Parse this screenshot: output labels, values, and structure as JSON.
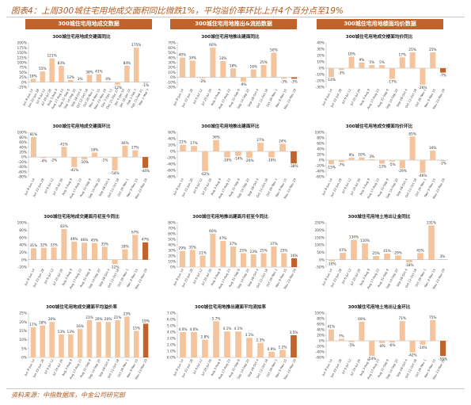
{
  "figure": {
    "title": "图表4：上周300城住宅用地成交面积同比微跌1%，平均溢价率环比上升4个百分点至19%",
    "source": "资料来源：中指数据库，中金公司研究部",
    "col_headers": [
      "300城住宅用地成交数据",
      "300城住宅用地推出&流拍数据",
      "300城住宅用地楼面均价数据"
    ]
  },
  "chart_data": [
    {
      "type": "bar",
      "title": "300城住宅用地成交建面同比",
      "ylim": [
        -25,
        200
      ],
      "yticks": [
        -25,
        0,
        25,
        50,
        75,
        100,
        125,
        150,
        175,
        200
      ],
      "tick_format": "pct",
      "categories": [
        "Jun 8-Jun 14",
        "Jun 22-Jun 28",
        "Jul 6-Jul 12",
        "Jul 20-Jul 26",
        "Aug 3-Aug 9",
        "Aug 17-Aug 23",
        "Aug 31-Sep 6",
        "Sep 14-Sep 20",
        "Sep 28-Oct 4",
        "Oct 12-Oct 18",
        "Oct 26-Nov 1",
        "Nov 9-Nov 15",
        "Nov 23-Nov 29",
        "Dec 7-Dec 13",
        "Dec 21-Dec 27",
        "Jan 4-Jan 10",
        "Jan 18-Jan 24",
        "Feb 1-Feb 7",
        "Feb 15-Feb 21",
        "Mar 1-Mar 7"
      ],
      "x_labels": [
        "Jun 8-Jun 14",
        "Jun 22-Jun 28",
        "Jul 6-Jul 12",
        "Jul 20-Jul 26",
        "Aug 3-Aug 9",
        "Aug 17-Aug 23",
        "Aug 31-Sep 6",
        "Sep 14-Sep 20",
        "Sep 28-Oct 4",
        "Oct 12-Oct 18",
        "Oct 26-Nov 1",
        "Nov 9-Nov 15",
        "Nov 23-Nov 29",
        "Dec 7-Dec 13",
        "Dec 21-Dec 27",
        "Jan 4-Jan 10",
        "Jan 18-Jan 24",
        "Feb 1-Feb 7",
        "Feb 15-Feb 21",
        "Mar 1-Mar 7"
      ],
      "values": [
        18,
        55,
        121,
        83,
        12,
        3,
        38,
        41,
        4,
        -12,
        84,
        175,
        -1,
        null,
        null,
        null,
        null,
        null,
        null,
        null
      ],
      "labels": [
        "18%",
        "55%",
        "121%",
        "83%",
        "12%",
        "3%",
        "38%",
        "41%",
        "4%",
        "-12%",
        "84%",
        "175%",
        "-1%"
      ],
      "highlight_last": true
    },
    {
      "type": "bar",
      "title": "300城住宅用地推出建面同比",
      "ylim": [
        -20,
        70
      ],
      "yticks": [
        -20,
        -10,
        0,
        10,
        20,
        30,
        40,
        50,
        60,
        70
      ],
      "tick_format": "pct",
      "x_labels": [
        "Jun 8-Jun 14",
        "Jun 22-Jun 28",
        "Jul 6-Jul 12",
        "Jul 20-Jul 26",
        "Aug 3-Aug 9",
        "Aug 17-Aug 23",
        "Aug 31-Sep 6",
        "Sep 14-Sep 20",
        "Sep 28-Oct 4",
        "Oct 12-Oct 18",
        "Oct 26-Nov 1",
        "Nov 9-Nov 15",
        "Nov 23-Nov 29"
      ],
      "values": [
        40,
        34,
        -2,
        60,
        33,
        18,
        -9,
        16,
        25,
        50,
        -3,
        -3
      ],
      "labels": [
        "40%",
        "34%",
        "-2%",
        "60%",
        "33%",
        "18%",
        "-9%",
        "16%",
        "25%",
        "50%",
        "-3%",
        "-3%"
      ],
      "highlight_last": true
    },
    {
      "type": "bar",
      "title": "300城住宅用地成交楼面均价同比",
      "ylim": [
        -30,
        40
      ],
      "yticks": [
        -30,
        -20,
        -10,
        0,
        10,
        20,
        30,
        40
      ],
      "tick_format": "pct",
      "x_labels": [
        "Jun 8-Jun 14",
        "Jun 22-Jun 28",
        "Jul 6-Jul 12",
        "Jul 20-Jul 26",
        "Aug 3-Aug 9",
        "Aug 17-Aug 23",
        "Aug 31-Sep 6",
        "Sep 14-Sep 20",
        "Sep 28-Oct 4",
        "Oct 12-Oct 18",
        "Oct 26-Nov 1",
        "Nov 9-Nov 15",
        "Nov 23-Nov 29"
      ],
      "values": [
        -14,
        -3,
        18,
        9,
        5,
        5,
        -17,
        17,
        25,
        -26,
        25,
        -7
      ],
      "labels": [
        "-14%",
        "-3%",
        "18%",
        "9%",
        "5%",
        "5%",
        "-17%",
        "17%",
        "25%",
        "-26%",
        "25%",
        "-7%"
      ],
      "highlight_last": true
    },
    {
      "type": "bar",
      "title": "300城住宅用地成交建面环比",
      "ylim": [
        -80,
        100
      ],
      "yticks": [
        -80,
        -60,
        -40,
        -20,
        0,
        20,
        40,
        60,
        80,
        100
      ],
      "tick_format": "pct",
      "x_labels": [
        "Jun 8-Jun 14",
        "Jun 22-Jun 28",
        "Jul 6-Jul 12",
        "Jul 20-Jul 26",
        "Aug 3-Aug 9",
        "Aug 17-Aug 23",
        "Aug 31-Sep 6",
        "Sep 14-Sep 20",
        "Sep 28-Oct 4",
        "Oct 12-Oct 18",
        "Oct 26-Nov 1",
        "Nov 9-Nov 15",
        "Nov 23-Nov 29"
      ],
      "values": [
        81,
        -4,
        -2,
        41,
        -41,
        -10,
        18,
        -1,
        -54,
        46,
        27,
        -44
      ],
      "labels": [
        "81%",
        "-4%",
        "-2%",
        "41%",
        "-41%",
        "-10%",
        "18%",
        "-1%",
        "-54%",
        "46%",
        "27%",
        "-44%"
      ],
      "highlight_last": true
    },
    {
      "type": "bar",
      "title": "300城住宅用地推出建面环比",
      "ylim": [
        -80,
        60
      ],
      "yticks": [
        -80,
        -60,
        -40,
        -20,
        0,
        20,
        40,
        60
      ],
      "tick_format": "pct",
      "x_labels": [
        "Jun 8-Jun 14",
        "Jun 22-Jun 28",
        "Jul 6-Jul 12",
        "Jul 20-Jul 26",
        "Aug 3-Aug 9",
        "Aug 17-Aug 23",
        "Aug 31-Sep 6",
        "Sep 14-Sep 20",
        "Sep 28-Oct 4",
        "Oct 12-Oct 18",
        "Oct 26-Nov 1",
        "Nov 9-Nov 15",
        "Nov 23-Nov 29"
      ],
      "values": [
        21,
        17,
        -62,
        36,
        -19,
        -14,
        -20,
        27,
        -19,
        24,
        -38
      ],
      "labels": [
        "21%",
        "17%",
        "-62%",
        "36%",
        "-19%",
        "-14%",
        "-20%",
        "27%",
        "-19%",
        "24%",
        "-38%"
      ],
      "highlight_last": true
    },
    {
      "type": "bar",
      "title": "300城住宅用地成交楼面均价环比",
      "ylim": [
        -60,
        100
      ],
      "yticks": [
        -60,
        -40,
        -20,
        0,
        20,
        40,
        60,
        80,
        100
      ],
      "tick_format": "pct",
      "x_labels": [
        "Jun 8-Jun 14",
        "Jun 22-Jun 28",
        "Jul 6-Jul 12",
        "Jul 20-Jul 26",
        "Aug 3-Aug 9",
        "Aug 17-Aug 23",
        "Aug 31-Sep 6",
        "Sep 14-Sep 20",
        "Sep 28-Oct 4",
        "Oct 12-Oct 18",
        "Oct 26-Nov 1",
        "Nov 9-Nov 15",
        "Nov 23-Nov 29"
      ],
      "values": [
        -15,
        -7,
        9,
        10,
        3,
        -13,
        -5,
        -29,
        85,
        -46,
        34,
        -1
      ],
      "labels": [
        "-15%",
        "-7%",
        "9%",
        "10%",
        "3%",
        "-13%",
        "-5%",
        "-29%",
        "85%",
        "-46%",
        "34%",
        "-1%"
      ],
      "highlight_last": true
    },
    {
      "type": "bar",
      "title": "300城住宅用地成交建面月初至今同比",
      "ylim": [
        -20,
        100
      ],
      "yticks": [
        -20,
        0,
        20,
        40,
        60,
        80,
        100
      ],
      "tick_format": "pct",
      "x_labels": [
        "Jun 8-Jun 14",
        "Jun 22-Jun 28",
        "Jul 6-Jul 12",
        "Jul 20-Jul 26",
        "Aug 3-Aug 9",
        "Aug 17-Aug 23",
        "Aug 31-Sep 6",
        "Sep 14-Sep 20",
        "Sep 28-Oct 4",
        "Oct 12-Oct 18",
        "Oct 26-Nov 1",
        "Nov 9-Nov 15",
        "Nov 23-Nov 29"
      ],
      "values": [
        31,
        32,
        33,
        83,
        49,
        46,
        45,
        35,
        -12,
        28,
        67,
        47
      ],
      "labels": [
        "31%",
        "32%",
        "33%",
        "83%",
        "49%",
        "46%",
        "45%",
        "35%",
        "-12%",
        "28%",
        "67%",
        "47%"
      ],
      "highlight_last": true
    },
    {
      "type": "bar",
      "title": "300城住宅用地推出建面月初至今同比",
      "ylim": [
        0,
        80
      ],
      "yticks": [
        0,
        10,
        20,
        30,
        40,
        50,
        60,
        70,
        80
      ],
      "tick_format": "pct",
      "x_labels": [
        "Jun 8-Jun 14",
        "Jun 22-Jun 28",
        "Jul 6-Jul 12",
        "Jul 20-Jul 26",
        "Aug 3-Aug 9",
        "Aug 17-Aug 23",
        "Aug 31-Sep 6",
        "Sep 14-Sep 20",
        "Sep 28-Oct 4",
        "Oct 12-Oct 18",
        "Oct 26-Nov 1",
        "Nov 9-Nov 15",
        "Nov 23-Nov 29"
      ],
      "values": [
        29,
        31,
        21,
        60,
        47,
        37,
        25,
        23,
        25,
        37,
        25,
        16
      ],
      "labels": [
        "29%",
        "31%",
        "21%",
        "60%",
        "47%",
        "37%",
        "25%",
        "23%",
        "25%",
        "37%",
        "25%",
        "16%"
      ],
      "highlight_last": true
    },
    {
      "type": "bar",
      "title": "300城住宅用地土地出让金同比",
      "ylim": [
        -50,
        250
      ],
      "yticks": [
        -50,
        0,
        50,
        100,
        150,
        200,
        250
      ],
      "tick_format": "pct",
      "x_labels": [
        "Jun 8-Jun 14",
        "Jun 22-Jun 28",
        "Jul 6-Jul 12",
        "Jul 20-Jul 26",
        "Aug 3-Aug 9",
        "Aug 17-Aug 23",
        "Aug 31-Sep 6",
        "Sep 14-Sep 20",
        "Sep 28-Oct 4",
        "Oct 12-Oct 18",
        "Oct 26-Nov 1",
        "Nov 9-Nov 15",
        "Nov 23-Nov 29"
      ],
      "values": [
        -10,
        47,
        134,
        110,
        25,
        41,
        29,
        -18,
        45,
        231,
        3
      ],
      "labels": [
        "-10%",
        "47%",
        "134%",
        "110%",
        "25%",
        "41%",
        "29%",
        "-18%",
        "45%",
        "231%",
        "3%"
      ],
      "highlight_last": false
    },
    {
      "type": "bar",
      "title": "300城住宅用地成交建面平均溢价率",
      "ylim": [
        0,
        25
      ],
      "yticks": [
        0,
        5,
        10,
        15,
        20,
        25
      ],
      "tick_format": "pct",
      "x_labels": [
        "Jun 8-Jun 14",
        "Jun 22-Jun 28",
        "Jul 6-Jul 12",
        "Jul 20-Jul 26",
        "Aug 3-Aug 9",
        "Aug 17-Aug 23",
        "Aug 31-Sep 6",
        "Sep 14-Sep 20",
        "Sep 28-Oct 4",
        "Oct 12-Oct 18",
        "Oct 26-Nov 1",
        "Nov 9-Nov 15",
        "Nov 23-Nov 29"
      ],
      "values": [
        17,
        18,
        20,
        13,
        13,
        16,
        21,
        20,
        20,
        21,
        23,
        15,
        19
      ],
      "labels": [
        "17%",
        "18%",
        "20%",
        "13%",
        "13%",
        "16%",
        "21%",
        "20%",
        "20%",
        "21%",
        "23%",
        "15%",
        "19%"
      ],
      "highlight_last": true
    },
    {
      "type": "bar",
      "title": "300城住宅用地推出建面平均流拍率",
      "ylim": [
        0,
        7
      ],
      "yticks": [
        0,
        1,
        2,
        3,
        4,
        5,
        6,
        7
      ],
      "tick_format": "pct1",
      "x_labels": [
        "Jun 8-Jun 14",
        "Jun 22-Jun 28",
        "Jul 6-Jul 12",
        "Jul 20-Jul 26",
        "Aug 3-Aug 9",
        "Aug 17-Aug 23",
        "Aug 31-Sep 6",
        "Sep 14-Sep 20",
        "Sep 28-Oct 4",
        "Oct 12-Oct 18",
        "Oct 26-Nov 1",
        "Nov 9-Nov 15",
        "Nov 23-Nov 29"
      ],
      "values": [
        4.0,
        4.0,
        2.8,
        5.7,
        4.1,
        4.1,
        3.1,
        2.3,
        0.9,
        1.2,
        3.5
      ],
      "labels": [
        "4.0%",
        "4.0%",
        "2.8%",
        "5.7%",
        "4.1%",
        "4.1%",
        "3.1%",
        "2.3%",
        "0.9%",
        "1.2%",
        "3.5%"
      ],
      "highlight_last": true
    },
    {
      "type": "bar",
      "title": "300城住宅用地土地出让金环比",
      "ylim": [
        -60,
        100
      ],
      "yticks": [
        -60,
        -40,
        -20,
        0,
        20,
        40,
        60,
        80,
        100
      ],
      "tick_format": "pct",
      "x_labels": [
        "Jun 8-Jun 14",
        "Jun 22-Jun 28",
        "Jul 6-Jul 12",
        "Jul 20-Jul 26",
        "Aug 3-Aug 9",
        "Aug 17-Aug 23",
        "Aug 31-Sep 6",
        "Sep 14-Sep 20",
        "Sep 28-Oct 4",
        "Oct 12-Oct 18",
        "Oct 26-Nov 1",
        "Nov 9-Nov 15",
        "Nov 23-Nov 29"
      ],
      "values": [
        41,
        7,
        -5,
        69,
        -54,
        -8,
        -6,
        71,
        -42,
        -14,
        75,
        -55
      ],
      "labels": [
        "41%",
        "7%",
        "-5%",
        "69%",
        "-54%",
        "-8%",
        "-6%",
        "71%",
        "-42%",
        "-14%",
        "75%",
        "-55%"
      ],
      "highlight_last": true
    }
  ]
}
